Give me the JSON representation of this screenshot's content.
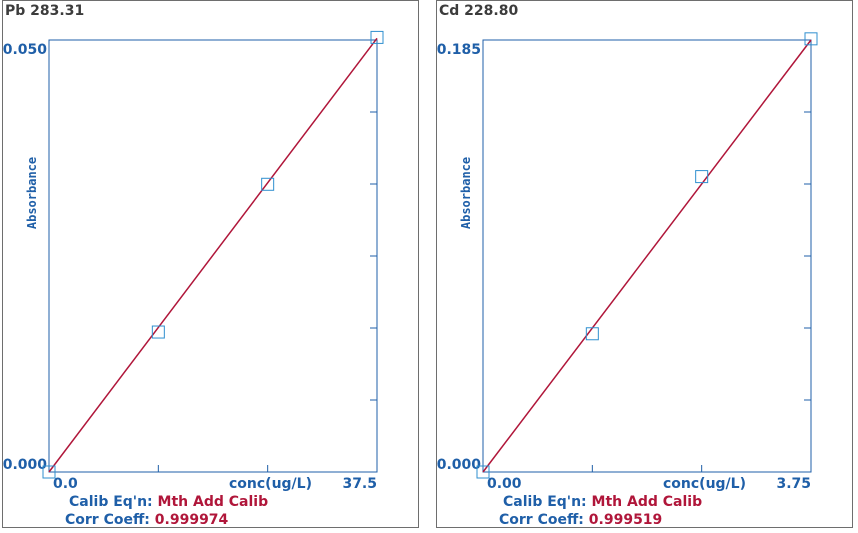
{
  "colors": {
    "axis": "#1f5fa8",
    "line": "#b0163a",
    "marker": "#2f8fcf",
    "title": "#3c3c3c"
  },
  "panels": [
    {
      "title": "Pb 283.31",
      "calib_label": "Calib Eq'n:",
      "calib_value": "Mth Add Calib",
      "corr_label": "Corr Coeff:",
      "corr_value": "0.999974"
    },
    {
      "title": "Cd 228.80",
      "calib_label": "Calib Eq'n:",
      "calib_value": "Mth Add Calib",
      "corr_label": "Corr Coeff:",
      "corr_value": "0.999519"
    }
  ],
  "chart_data": [
    {
      "type": "scatter",
      "title": "Pb 283.31",
      "xlabel": "conc(ug/L)",
      "ylabel": "Absorbance",
      "xlim": [
        0,
        37.5
      ],
      "ylim": [
        0,
        0.05
      ],
      "x_tick_labels": [
        "0.0",
        "37.5"
      ],
      "y_tick_labels": [
        "0.000",
        "0.050"
      ],
      "y_minor_ticks": 6,
      "x_minor_ticks": 3,
      "points": [
        {
          "x": 0,
          "y": 0
        },
        {
          "x": 12.5,
          "y": 0.0162
        },
        {
          "x": 25,
          "y": 0.0333
        },
        {
          "x": 37.5,
          "y": 0.0503
        }
      ],
      "fit_line": {
        "x": [
          0,
          37.5
        ],
        "y": [
          0,
          0.0502
        ]
      }
    },
    {
      "type": "scatter",
      "title": "Cd 228.80",
      "xlabel": "conc(ug/L)",
      "ylabel": "Absorbance",
      "xlim": [
        0,
        3.75
      ],
      "ylim": [
        0,
        0.185
      ],
      "x_tick_labels": [
        "0.00",
        "3.75"
      ],
      "y_tick_labels": [
        "0.000",
        "0.185"
      ],
      "y_minor_ticks": 6,
      "x_minor_ticks": 3,
      "points": [
        {
          "x": 0,
          "y": 0
        },
        {
          "x": 1.25,
          "y": 0.0592
        },
        {
          "x": 2.5,
          "y": 0.1265
        },
        {
          "x": 3.75,
          "y": 0.1855
        }
      ],
      "fit_line": {
        "x": [
          0,
          3.75
        ],
        "y": [
          0,
          0.185
        ]
      }
    }
  ]
}
